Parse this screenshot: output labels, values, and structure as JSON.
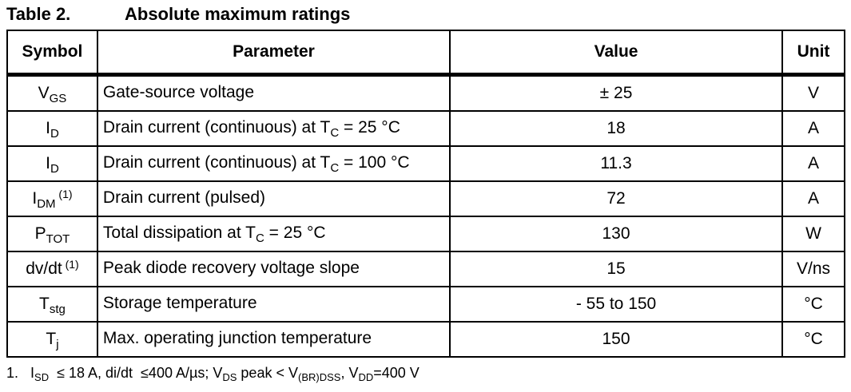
{
  "title": {
    "label": "Table 2.",
    "text": "Absolute maximum ratings"
  },
  "headers": [
    "Symbol",
    "Parameter",
    "Value",
    "Unit"
  ],
  "rows": [
    {
      "sym": "V",
      "sub": "GS",
      "sup": "",
      "p1": "Gate-source voltage",
      "psub": "",
      "p2": "",
      "value": "± 25",
      "unit": "V"
    },
    {
      "sym": "I",
      "sub": "D",
      "sup": "",
      "p1": "Drain current (continuous) at T",
      "psub": "C",
      "p2": " = 25 °C",
      "value": "18",
      "unit": "A"
    },
    {
      "sym": "I",
      "sub": "D",
      "sup": "",
      "p1": "Drain current (continuous) at T",
      "psub": "C",
      "p2": " = 100 °C",
      "value": "11.3",
      "unit": "A"
    },
    {
      "sym": "I",
      "sub": "DM",
      "sup": " (1)",
      "p1": "Drain current (pulsed)",
      "psub": "",
      "p2": "",
      "value": "72",
      "unit": "A"
    },
    {
      "sym": "P",
      "sub": "TOT",
      "sup": "",
      "p1": "Total dissipation at T",
      "psub": "C",
      "p2": " = 25 °C",
      "value": "130",
      "unit": "W"
    },
    {
      "sym": "dv/dt",
      "sub": "",
      "sup": " (1)",
      "p1": "Peak diode recovery voltage slope",
      "psub": "",
      "p2": "",
      "value": "15",
      "unit": "V/ns"
    },
    {
      "sym": "T",
      "sub": "stg",
      "sup": "",
      "p1": "Storage temperature",
      "psub": "",
      "p2": "",
      "value": "- 55 to 150",
      "unit": "°C"
    },
    {
      "sym": "T",
      "sub": "j",
      "sup": "",
      "p1": "Max. operating junction temperature",
      "psub": "",
      "p2": "",
      "value": "150",
      "unit": "°C"
    }
  ],
  "footnote": {
    "num": "1.",
    "segments": [
      {
        "t": "I",
        "s": "SD"
      },
      {
        "t": "  ≤ 18 A, di/dt  ≤400 A/µs; V",
        "s": "DS"
      },
      {
        "t": " peak < V",
        "s": "(BR)DSS"
      },
      {
        "t": ", V",
        "s": "DD"
      },
      {
        "t": "=400 V",
        "s": ""
      }
    ]
  }
}
